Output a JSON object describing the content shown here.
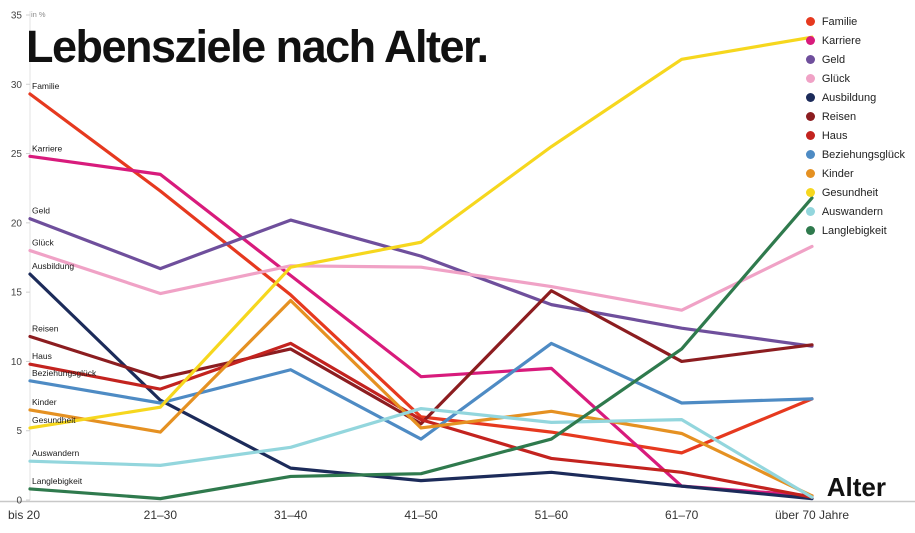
{
  "title": "Lebensziele nach Alter.",
  "chart_data": {
    "type": "line",
    "title": "Lebensziele nach Alter.",
    "xlabel": "Alter",
    "ylabel": "in %",
    "ylim": [
      0,
      35
    ],
    "y_ticks": [
      0,
      5,
      10,
      15,
      20,
      25,
      30,
      35
    ],
    "grid": false,
    "legend_position": "top-right",
    "categories": [
      "bis 20",
      "21–30",
      "31–40",
      "41–50",
      "51–60",
      "61–70",
      "über 70 Jahre"
    ],
    "series": [
      {
        "name": "Familie",
        "color": "#e6391f",
        "values": [
          29.3,
          22.3,
          14.8,
          6.0,
          4.9,
          3.4,
          7.3
        ]
      },
      {
        "name": "Karriere",
        "color": "#d81b7c",
        "values": [
          24.8,
          23.5,
          16.2,
          8.9,
          9.5,
          1.0,
          0.3
        ]
      },
      {
        "name": "Geld",
        "color": "#6f4f9c",
        "values": [
          20.3,
          16.7,
          20.2,
          17.6,
          14.1,
          12.4,
          11.1
        ]
      },
      {
        "name": "Glück",
        "color": "#f0a2c6",
        "values": [
          18.0,
          14.9,
          16.9,
          16.8,
          15.4,
          13.7,
          18.3
        ]
      },
      {
        "name": "Ausbildung",
        "color": "#1c2b5a",
        "values": [
          16.3,
          7.2,
          2.3,
          1.4,
          2.0,
          1.0,
          0.1
        ]
      },
      {
        "name": "Reisen",
        "color": "#8c1d20",
        "values": [
          11.8,
          8.8,
          10.9,
          5.5,
          15.1,
          10.0,
          11.2
        ]
      },
      {
        "name": "Haus",
        "color": "#c3231f",
        "values": [
          9.8,
          8.0,
          11.3,
          5.8,
          3.0,
          2.0,
          0.2
        ]
      },
      {
        "name": "Beziehungsglück",
        "color": "#4e8bc4",
        "values": [
          8.6,
          7.0,
          9.4,
          4.4,
          11.3,
          7.0,
          7.3
        ]
      },
      {
        "name": "Kinder",
        "color": "#e59122",
        "values": [
          6.5,
          4.9,
          14.4,
          5.2,
          6.4,
          4.8,
          0.3
        ]
      },
      {
        "name": "Gesundheit",
        "color": "#f6d71e",
        "values": [
          5.2,
          6.7,
          16.8,
          18.6,
          25.5,
          31.8,
          33.4
        ]
      },
      {
        "name": "Auswandern",
        "color": "#93d6dd",
        "values": [
          2.8,
          2.5,
          3.8,
          6.6,
          5.6,
          5.8,
          0.2
        ]
      },
      {
        "name": "Langlebigkeit",
        "color": "#2f7a4d",
        "values": [
          0.8,
          0.1,
          1.7,
          1.9,
          4.4,
          10.9,
          21.8
        ]
      }
    ]
  }
}
